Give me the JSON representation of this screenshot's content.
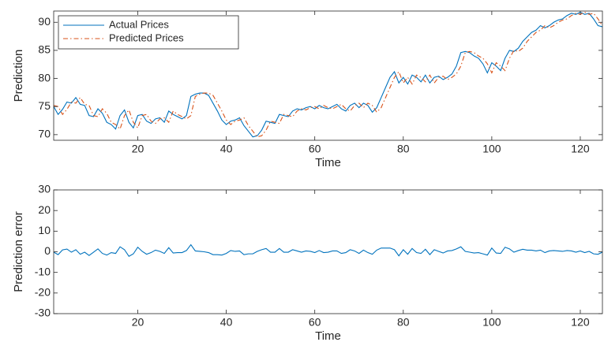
{
  "chart_data": [
    {
      "type": "line",
      "xlabel": "Time",
      "ylabel": "Prediction",
      "x": [
        1,
        2,
        3,
        4,
        5,
        6,
        7,
        8,
        9,
        10,
        11,
        12,
        13,
        14,
        15,
        16,
        17,
        18,
        19,
        20,
        21,
        22,
        23,
        24,
        25,
        26,
        27,
        28,
        29,
        30,
        31,
        32,
        33,
        34,
        35,
        36,
        37,
        38,
        39,
        40,
        41,
        42,
        43,
        44,
        45,
        46,
        47,
        48,
        49,
        50,
        51,
        52,
        53,
        54,
        55,
        56,
        57,
        58,
        59,
        60,
        61,
        62,
        63,
        64,
        65,
        66,
        67,
        68,
        69,
        70,
        71,
        72,
        73,
        74,
        75,
        76,
        77,
        78,
        79,
        80,
        81,
        82,
        83,
        84,
        85,
        86,
        87,
        88,
        89,
        90,
        91,
        92,
        93,
        94,
        95,
        96,
        97,
        98,
        99,
        100,
        101,
        102,
        103,
        104,
        105,
        106,
        107,
        108,
        109,
        110,
        111,
        112,
        113,
        114,
        115,
        116,
        117,
        118,
        119,
        120,
        121,
        122,
        123,
        124,
        125
      ],
      "series": [
        {
          "name": "Actual Prices",
          "color": "#0072bd",
          "linestyle": "solid",
          "values": [
            75,
            73.6,
            74.5,
            75.8,
            75.6,
            76.6,
            75.4,
            75.2,
            73.4,
            73.2,
            74.6,
            73.8,
            72.2,
            71.8,
            71,
            73.4,
            74.4,
            72.2,
            71.2,
            73.4,
            73.6,
            72.4,
            72,
            72.8,
            73,
            72.2,
            74.2,
            73.6,
            73.2,
            72.8,
            73.4,
            76.8,
            77.2,
            77.4,
            77.4,
            77,
            75.6,
            74.2,
            72.6,
            71.8,
            72.4,
            72.6,
            73,
            71.6,
            70.6,
            69.6,
            69.8,
            70.8,
            72.4,
            72.2,
            72,
            73.6,
            73.4,
            73.2,
            74.2,
            74.6,
            74.4,
            74.8,
            75,
            74.6,
            75.2,
            74.8,
            74.6,
            75,
            75.4,
            74.6,
            74.2,
            75.2,
            75.6,
            74.8,
            75.6,
            75.2,
            74,
            74.8,
            76.6,
            78.4,
            80.2,
            81.2,
            79.2,
            80.2,
            79,
            80.6,
            80.2,
            79.4,
            80.6,
            79.2,
            80.2,
            80.4,
            79.8,
            80.2,
            80.8,
            82.2,
            84.6,
            84.8,
            84.6,
            84,
            83.6,
            82.6,
            81,
            82.8,
            82.2,
            81.4,
            83.6,
            85,
            84.8,
            85.4,
            86.6,
            87.4,
            88.2,
            88.6,
            89.4,
            89,
            89.4,
            90,
            90.4,
            90.6,
            91.2,
            91.6,
            91.4,
            91.8,
            91.4,
            91.6,
            90.6,
            89.4,
            89.2
          ]
        },
        {
          "name": "Predicted Prices",
          "color": "#d95319",
          "linestyle": "dashdot",
          "values": [
            75.2,
            75,
            73.6,
            74.5,
            75.8,
            75.6,
            76.6,
            75.4,
            75.2,
            73.4,
            73.2,
            74.6,
            73.8,
            72.2,
            71.8,
            71,
            73.4,
            74.4,
            72.2,
            71.2,
            73.4,
            73.6,
            72.4,
            72,
            72.8,
            73,
            72.2,
            74.2,
            73.6,
            73.2,
            72.8,
            73.4,
            76.8,
            77.2,
            77.4,
            77.4,
            77,
            75.6,
            74.2,
            72.6,
            71.8,
            72.4,
            72.6,
            73,
            71.6,
            70.6,
            69.6,
            69.8,
            70.8,
            72.4,
            72.2,
            72,
            73.6,
            73.4,
            73.2,
            74.2,
            74.6,
            74.4,
            74.8,
            75,
            74.6,
            75.2,
            74.8,
            74.6,
            75,
            75.4,
            74.6,
            74.2,
            75.2,
            75.6,
            74.8,
            75.6,
            75.2,
            74,
            74.8,
            76.6,
            78.4,
            80.2,
            81.2,
            79.2,
            80.2,
            79,
            80.6,
            80.2,
            79.4,
            80.6,
            79.2,
            80.2,
            80.4,
            79.8,
            80.2,
            80.8,
            82.2,
            84.6,
            84.8,
            84.6,
            84,
            83.6,
            82.6,
            81,
            82.8,
            82.2,
            81.4,
            83.6,
            85,
            84.8,
            85.4,
            86.6,
            87.4,
            88.2,
            88.6,
            89.4,
            89,
            89.4,
            90,
            90.4,
            90.6,
            91.2,
            91.6,
            91.4,
            91.8,
            91.4,
            91.6,
            90.6,
            89.4
          ]
        }
      ],
      "xlim": [
        1,
        125
      ],
      "xticks": [
        20,
        40,
        60,
        80,
        100,
        120
      ],
      "ylim": [
        69,
        92
      ],
      "yticks": [
        70,
        75,
        80,
        85,
        90
      ],
      "legend": "upper left",
      "grid": false
    },
    {
      "type": "line",
      "xlabel": "Time",
      "ylabel": "Prediction error",
      "x": [
        1,
        2,
        3,
        4,
        5,
        6,
        7,
        8,
        9,
        10,
        11,
        12,
        13,
        14,
        15,
        16,
        17,
        18,
        19,
        20,
        21,
        22,
        23,
        24,
        25,
        26,
        27,
        28,
        29,
        30,
        31,
        32,
        33,
        34,
        35,
        36,
        37,
        38,
        39,
        40,
        41,
        42,
        43,
        44,
        45,
        46,
        47,
        48,
        49,
        50,
        51,
        52,
        53,
        54,
        55,
        56,
        57,
        58,
        59,
        60,
        61,
        62,
        63,
        64,
        65,
        66,
        67,
        68,
        69,
        70,
        71,
        72,
        73,
        74,
        75,
        76,
        77,
        78,
        79,
        80,
        81,
        82,
        83,
        84,
        85,
        86,
        87,
        88,
        89,
        90,
        91,
        92,
        93,
        94,
        95,
        96,
        97,
        98,
        99,
        100,
        101,
        102,
        103,
        104,
        105,
        106,
        107,
        108,
        109,
        110,
        111,
        112,
        113,
        114,
        115,
        116,
        117,
        118,
        119,
        120,
        121,
        122,
        123,
        124,
        125
      ],
      "series": [
        {
          "color": "#0072bd",
          "linestyle": "solid",
          "values": [
            -0.2,
            -1.4,
            0.9,
            1.3,
            -0.2,
            1.0,
            -1.2,
            -0.2,
            -1.8,
            -0.2,
            1.4,
            -0.8,
            -1.6,
            -0.4,
            -0.8,
            2.4,
            1.0,
            -2.2,
            -1.0,
            2.2,
            0.2,
            -1.2,
            -0.4,
            0.8,
            0.2,
            -0.8,
            2.0,
            -0.6,
            -0.4,
            -0.4,
            0.6,
            3.4,
            0.4,
            0.2,
            0,
            -0.4,
            -1.4,
            -1.4,
            -1.6,
            -0.8,
            0.6,
            0.2,
            0.4,
            -1.4,
            -1.0,
            -1.0,
            0.2,
            1.0,
            1.6,
            -0.2,
            -0.2,
            1.6,
            -0.2,
            -0.2,
            1.0,
            0.4,
            -0.2,
            0.4,
            0.2,
            -0.4,
            0.6,
            -0.4,
            -0.2,
            0.4,
            0.4,
            -0.8,
            -0.4,
            1.0,
            0.4,
            -0.8,
            0.8,
            -0.4,
            -1.2,
            0.8,
            1.8,
            1.8,
            1.8,
            1.0,
            -2.0,
            1.0,
            -1.2,
            1.6,
            -0.4,
            -0.8,
            1.2,
            -1.4,
            1.0,
            0.2,
            -0.6,
            0.4,
            0.6,
            1.4,
            2.4,
            0.2,
            -0.2,
            -0.6,
            -0.4,
            -1.0,
            -1.6,
            1.8,
            -0.6,
            -0.8,
            2.2,
            1.4,
            -0.2,
            0.6,
            1.2,
            0.8,
            0.8,
            0.4,
            0.8,
            -0.4,
            0.4,
            0.6,
            0.4,
            0.2,
            0.6,
            0.4,
            -0.2,
            0.4,
            -0.4,
            0.2,
            -1.0,
            -1.2,
            -0.2
          ]
        }
      ],
      "xlim": [
        1,
        125
      ],
      "xticks": [
        20,
        40,
        60,
        80,
        100,
        120
      ],
      "ylim": [
        -30,
        30
      ],
      "yticks": [
        -30,
        -20,
        -10,
        0,
        10,
        20,
        30
      ],
      "grid": false
    }
  ]
}
